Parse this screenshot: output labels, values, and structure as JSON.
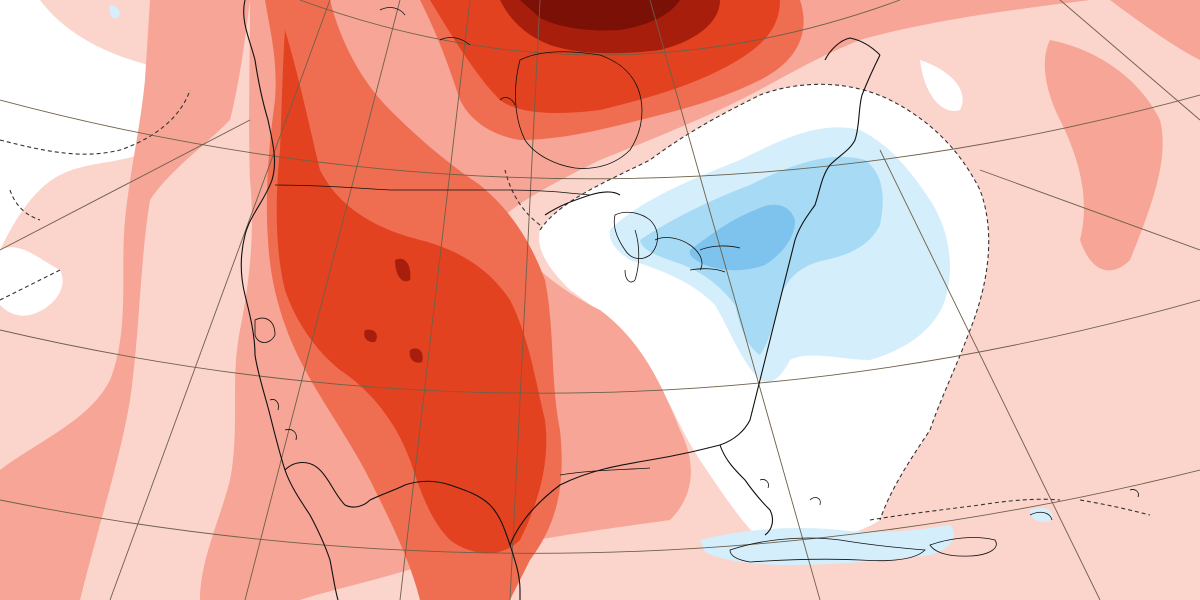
{
  "map": {
    "type": "temperature-anomaly-map",
    "region": "north-america",
    "projection": "polar-stereographic",
    "legend": "none",
    "labels": "none",
    "colors": {
      "background_near_zero": "#ffffff",
      "warm_1": "#fbd4cc",
      "warm_2": "#f6a596",
      "warm_3": "#ef6d50",
      "warm_4": "#e2421f",
      "warm_5": "#a81e0d",
      "warm_6": "#7a1006",
      "cool_1": "#d4eefb",
      "cool_2": "#a6daf5",
      "cool_3": "#7dc3ee",
      "coastline": "#111111",
      "graticule": "#6e6048",
      "zero_contour": "#333333"
    }
  }
}
